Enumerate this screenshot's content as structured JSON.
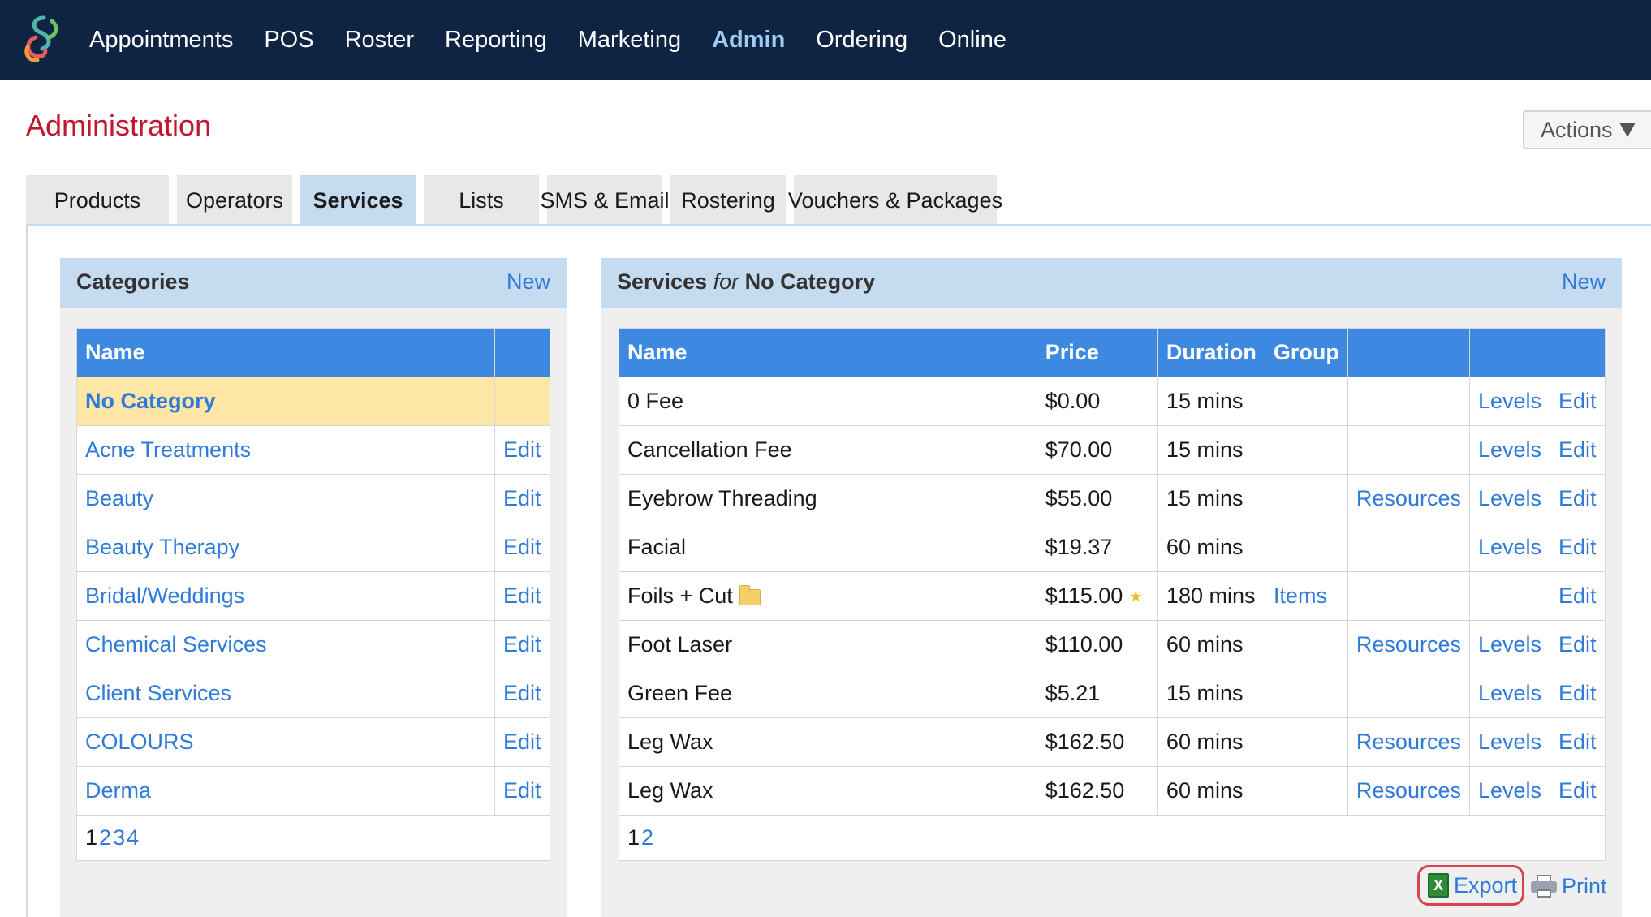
{
  "nav": {
    "items": [
      "Appointments",
      "POS",
      "Roster",
      "Reporting",
      "Marketing",
      "Admin",
      "Ordering",
      "Online"
    ],
    "active": "Admin"
  },
  "page": {
    "title": "Administration",
    "actions_label": "Actions"
  },
  "tabs": [
    "Products",
    "Operators",
    "Services",
    "Lists",
    "SMS & Email",
    "Rostering",
    "Vouchers & Packages"
  ],
  "categories": {
    "title": "Categories",
    "new_label": "New",
    "col_name": "Name",
    "rows": [
      {
        "name": "No Category",
        "edit": ""
      },
      {
        "name": "Acne Treatments",
        "edit": "Edit"
      },
      {
        "name": "Beauty",
        "edit": "Edit"
      },
      {
        "name": "Beauty Therapy",
        "edit": "Edit"
      },
      {
        "name": "Bridal/Weddings",
        "edit": "Edit"
      },
      {
        "name": "Chemical Services",
        "edit": "Edit"
      },
      {
        "name": "Client Services",
        "edit": "Edit"
      },
      {
        "name": "COLOURS",
        "edit": "Edit"
      },
      {
        "name": "Derma",
        "edit": "Edit"
      }
    ],
    "pages": [
      "1",
      "2",
      "3",
      "4"
    ],
    "current_page": "1"
  },
  "services": {
    "title_prefix": "Services",
    "title_for": "for",
    "title_category": "No Category",
    "new_label": "New",
    "columns": {
      "name": "Name",
      "price": "Price",
      "duration": "Duration",
      "group": "Group"
    },
    "rows": [
      {
        "name": "0 Fee",
        "price": "$0.00",
        "duration": "15 mins",
        "group": "",
        "resources": "",
        "levels": "Levels",
        "edit": "Edit"
      },
      {
        "name": "Cancellation Fee",
        "price": "$70.00",
        "duration": "15 mins",
        "group": "",
        "resources": "",
        "levels": "Levels",
        "edit": "Edit"
      },
      {
        "name": "Eyebrow Threading",
        "price": "$55.00",
        "duration": "15 mins",
        "group": "",
        "resources": "Resources",
        "levels": "Levels",
        "edit": "Edit"
      },
      {
        "name": "Facial",
        "price": "$19.37",
        "duration": "60 mins",
        "group": "",
        "resources": "",
        "levels": "Levels",
        "edit": "Edit"
      },
      {
        "name": "Foils + Cut",
        "price": "$115.00",
        "duration": "180 mins",
        "group": "Items",
        "resources": "",
        "levels": "",
        "edit": "Edit",
        "folder": true,
        "star": true
      },
      {
        "name": "Foot Laser",
        "price": "$110.00",
        "duration": "60 mins",
        "group": "",
        "resources": "Resources",
        "levels": "Levels",
        "edit": "Edit"
      },
      {
        "name": "Green Fee",
        "price": "$5.21",
        "duration": "15 mins",
        "group": "",
        "resources": "",
        "levels": "Levels",
        "edit": "Edit"
      },
      {
        "name": "Leg Wax",
        "price": "$162.50",
        "duration": "60 mins",
        "group": "",
        "resources": "Resources",
        "levels": "Levels",
        "edit": "Edit"
      },
      {
        "name": "Leg Wax",
        "price": "$162.50",
        "duration": "60 mins",
        "group": "",
        "resources": "Resources",
        "levels": "Levels",
        "edit": "Edit"
      }
    ],
    "pages": [
      "1",
      "2"
    ],
    "current_page": "1"
  },
  "footer": {
    "export_label": "Export",
    "print_label": "Print"
  },
  "colors": {
    "nav_bg": "#0f2343",
    "title_red": "#c0172c",
    "header_blue": "#3d88e0",
    "link_blue": "#2f7bd9",
    "selected_row": "#fde6a6"
  }
}
